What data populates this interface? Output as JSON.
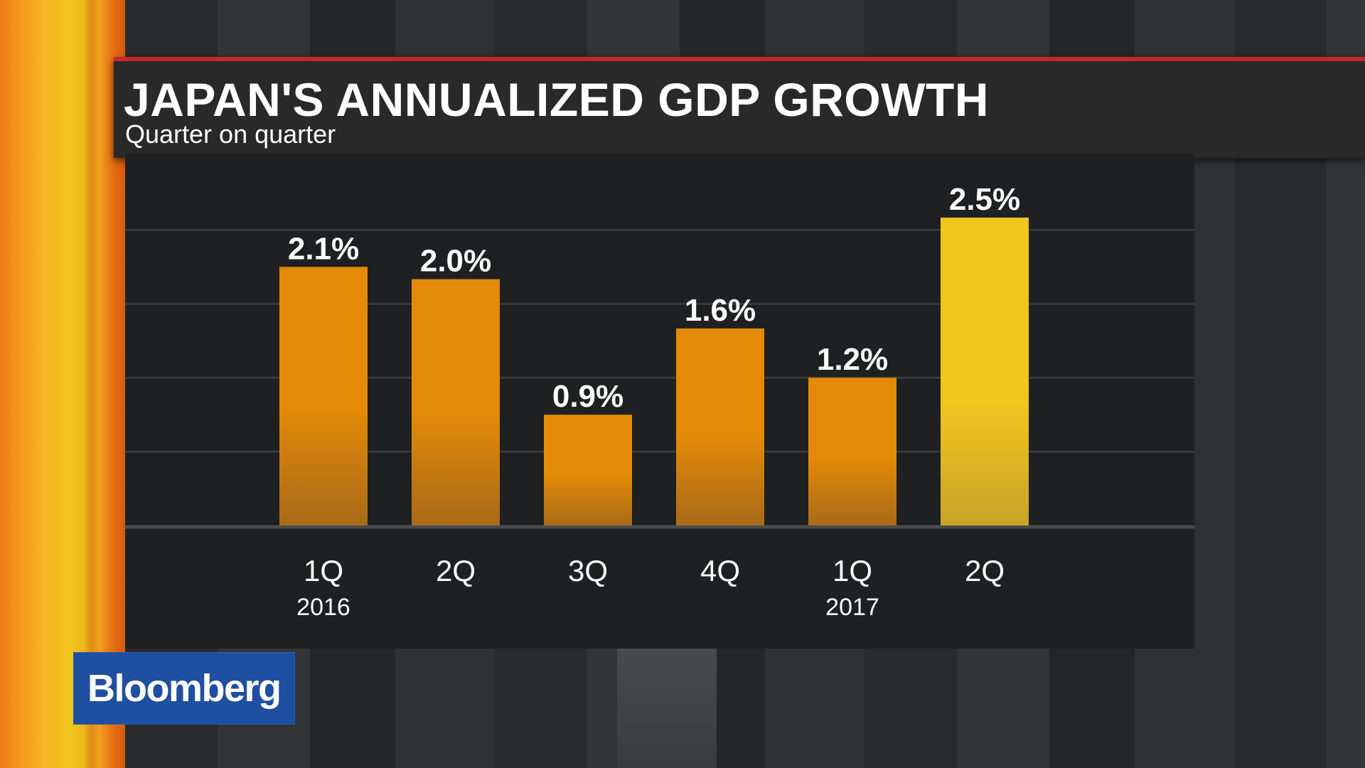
{
  "header": {
    "title": "JAPAN'S ANNUALIZED GDP GROWTH",
    "subtitle": "Quarter on quarter"
  },
  "logo": {
    "text": "Bloomberg"
  },
  "colors": {
    "bar": "#e38a08",
    "bar_bottom": "#a86a18",
    "bar_highlight": "#f2c51f",
    "bar_highlight_bottom": "#c8a328",
    "gridline": "#3a3b3c",
    "baseline": "#4a4b4c",
    "label": "#ffffff"
  },
  "chart_data": {
    "type": "bar",
    "title": "JAPAN'S ANNUALIZED GDP GROWTH",
    "subtitle": "Quarter on quarter",
    "categories": [
      "1Q",
      "2Q",
      "3Q",
      "4Q",
      "1Q",
      "2Q"
    ],
    "year_labels": [
      "2016",
      "",
      "",
      "",
      "2017",
      ""
    ],
    "values": [
      2.1,
      2.0,
      0.9,
      1.6,
      1.2,
      2.5
    ],
    "data_labels": [
      "2.1%",
      "2.0%",
      "0.9%",
      "1.6%",
      "1.2%",
      "2.5%"
    ],
    "highlight_index": 5,
    "ylim": [
      0,
      3.0
    ],
    "gridlines": [
      0.6,
      1.2,
      1.8,
      2.4
    ],
    "grid": true,
    "legend": "none"
  }
}
